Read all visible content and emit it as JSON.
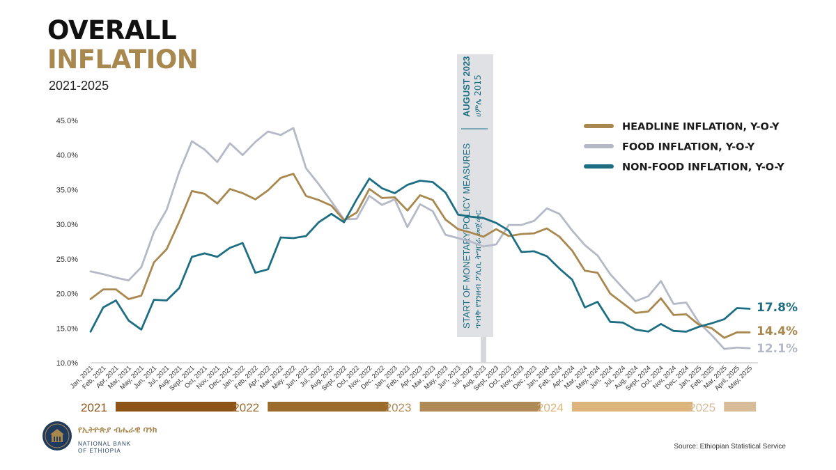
{
  "header": {
    "title_line1": "OVERALL",
    "title_line2": "INFLATION",
    "subtitle": "2021-2025"
  },
  "colors": {
    "headline": "#a8884f",
    "food": "#b5b9c7",
    "nonfood": "#1d6e82",
    "banner_bg": "#dfe1e5",
    "banner_text": "#1d6e82"
  },
  "chart_data": {
    "type": "line",
    "title": "OVERALL INFLATION 2021-2025",
    "ylim": [
      10,
      45
    ],
    "yticks": [
      "10.0%",
      "15.0%",
      "20.0%",
      "25.0%",
      "30.0%",
      "35.0%",
      "40.0%",
      "45.0%"
    ],
    "categories": [
      "Jan, 2021",
      "Feb, 2021",
      "Apr, 2021",
      "Mar, 2021",
      "May, 2021",
      "Jun, 2021",
      "Jul, 2021",
      "Aug, 2021",
      "Sept, 2021",
      "Oct, 2021",
      "Nov, 2021",
      "Dec, 2021",
      "Jan, 2022",
      "Feb, 2022",
      "Apr, 2022",
      "Mar, 2022",
      "May, 2022",
      "Jun, 2022",
      "Jul, 2022",
      "Aug, 2022",
      "Sept, 2022",
      "Oct, 2022",
      "Nov, 2022",
      "Dec, 2022",
      "Jan, 2023",
      "Feb, 2023",
      "Apr, 2023",
      "Mar, 2023",
      "May, 2023",
      "Jun, 2023",
      "Jul, 2023",
      "Aug, 2023",
      "Sept, 2023",
      "Oct, 2023",
      "Nov, 2023",
      "Dec, 2023",
      "Jan, 2024",
      "Feb, 2024",
      "Apr, 2024",
      "Mar, 2024",
      "May, 2024",
      "Jun, 2024",
      "Jul, 2024",
      "Aug, 2024",
      "Sept, 2024",
      "Oct, 2024",
      "Nov, 2024",
      "Dec, 2024",
      "Jan, 2025",
      "Feb, 2025",
      "Mar, 2025",
      "April, 2025",
      "May, 2025"
    ],
    "series": [
      {
        "name": "HEADLINE INFLATION, Y-O-Y",
        "key": "headline",
        "values": [
          19.2,
          20.6,
          20.6,
          19.2,
          19.7,
          24.5,
          26.4,
          30.4,
          34.8,
          34.4,
          33.0,
          35.1,
          34.5,
          33.6,
          34.9,
          36.7,
          37.3,
          34.1,
          33.5,
          32.7,
          30.6,
          31.7,
          35.1,
          33.8,
          33.9,
          32.0,
          34.2,
          33.5,
          30.7,
          29.3,
          28.8,
          28.2,
          29.3,
          28.3,
          28.6,
          28.7,
          29.4,
          28.2,
          26.2,
          23.3,
          23.0,
          20.0,
          18.6,
          17.2,
          17.4,
          19.3,
          16.9,
          17.0,
          15.5,
          15.0,
          13.6,
          14.4,
          14.4
        ],
        "end_label": "14.4%"
      },
      {
        "name": "FOOD INFLATION, Y-O-Y",
        "key": "food",
        "values": [
          23.2,
          22.8,
          22.3,
          21.9,
          23.8,
          28.9,
          32.1,
          37.6,
          42.0,
          40.8,
          39.0,
          41.7,
          40.0,
          41.9,
          43.4,
          42.9,
          43.9,
          38.1,
          35.8,
          33.3,
          30.7,
          30.8,
          34.1,
          32.8,
          33.6,
          29.6,
          32.9,
          31.9,
          28.5,
          28.0,
          27.5,
          26.8,
          27.1,
          29.9,
          29.9,
          30.5,
          32.3,
          31.5,
          29.1,
          27.0,
          25.5,
          22.8,
          20.8,
          18.9,
          19.6,
          21.8,
          18.5,
          18.7,
          15.8,
          14.0,
          12.0,
          12.2,
          12.1
        ],
        "end_label": "12.1%"
      },
      {
        "name": "NON-FOOD INFLATION, Y-O-Y",
        "key": "nonfood",
        "values": [
          14.5,
          18.0,
          19.0,
          16.1,
          14.8,
          19.1,
          19.0,
          20.8,
          25.3,
          25.8,
          25.3,
          26.6,
          27.3,
          23.0,
          23.5,
          28.1,
          28.0,
          28.3,
          30.3,
          31.5,
          30.3,
          33.6,
          36.6,
          35.2,
          34.5,
          35.7,
          36.3,
          36.1,
          34.6,
          31.4,
          31.1,
          30.9,
          30.2,
          29.1,
          26.0,
          26.1,
          25.4,
          23.6,
          22.0,
          18.0,
          18.8,
          15.9,
          15.8,
          14.8,
          14.5,
          15.6,
          14.6,
          14.5,
          15.2,
          15.7,
          16.3,
          17.9,
          17.8
        ],
        "end_label": "17.8%"
      }
    ],
    "legend_position": "top-right",
    "year_bands": [
      {
        "year": "2021",
        "start_index": 0,
        "end_index": 11,
        "color": "#8c5417"
      },
      {
        "year": "2022",
        "start_index": 12,
        "end_index": 23,
        "color": "#9c6a2b"
      },
      {
        "year": "2023",
        "start_index": 24,
        "end_index": 35,
        "color": "#b08a55"
      },
      {
        "year": "2024",
        "start_index": 36,
        "end_index": 47,
        "color": "#dcb47c"
      },
      {
        "year": "2025",
        "start_index": 48,
        "end_index": 52,
        "color": "#d8bc98"
      }
    ],
    "annotation": {
      "at_index": 31,
      "date_label": "AUGUST 2023",
      "date_label_am": "ሀምሌ 2015",
      "text_line1": "START OF MONETARY POLICY MEASURES",
      "text_line2": "ጥብቅ የገንዘብ ፖሊሲ ትግበራ መጀመር"
    }
  },
  "logo": {
    "icon": "national-bank-seal-icon",
    "name_am": "የኢትዮጵያ ብሔራዊ ባንክ",
    "name_en": "NATIONAL BANK OF ETHIOPIA"
  },
  "footer": {
    "source": "Source: Ethiopian Statistical Service"
  }
}
